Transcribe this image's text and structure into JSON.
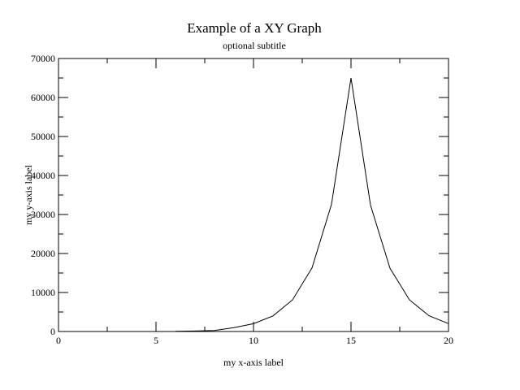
{
  "chart_data": {
    "type": "line",
    "title": "Example of a XY Graph",
    "subtitle": "optional subtitle",
    "xlabel": "my x-axis label",
    "ylabel": "my y-axis label",
    "xlim": [
      0,
      20
    ],
    "ylim": [
      0,
      70000
    ],
    "x_major_ticks": [
      0,
      5,
      10,
      15,
      20
    ],
    "x_minor_ticks": [
      2.5,
      7.5,
      12.5,
      17.5
    ],
    "y_major_ticks": [
      0,
      10000,
      20000,
      30000,
      40000,
      50000,
      60000,
      70000
    ],
    "y_minor_ticks": [
      5000,
      15000,
      25000,
      35000,
      45000,
      55000,
      65000
    ],
    "grid": false,
    "line_color": "#000000",
    "series": [
      {
        "x": [
          6,
          7,
          8,
          9,
          10,
          11,
          12,
          13,
          14,
          15,
          16,
          17,
          18,
          19,
          20
        ],
        "values": [
          64,
          128,
          256,
          1000,
          2000,
          4000,
          8100,
          16300,
          32600,
          65000,
          32400,
          16200,
          8100,
          4050,
          2030
        ]
      }
    ]
  }
}
